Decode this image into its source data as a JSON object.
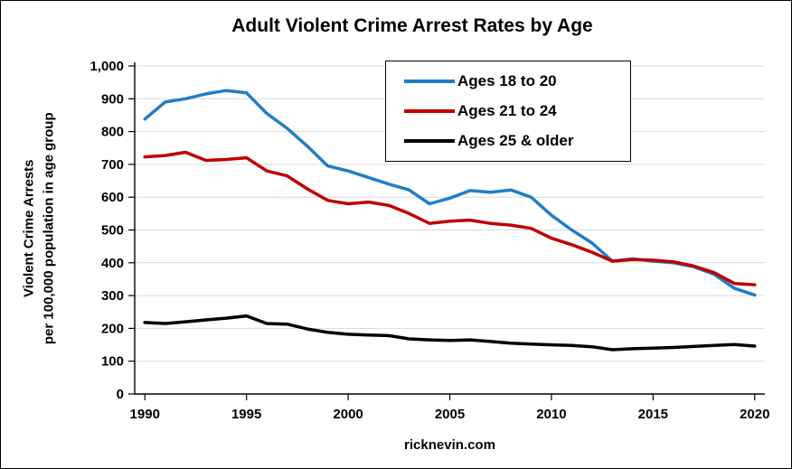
{
  "page": {
    "title": "Adult Violent Crime Arrest Rates by Age",
    "footer": "ricknevin.com",
    "y_axis_label_line1": "Violent Crime Arrests",
    "y_axis_label_line2": "per 100,000 population in age group"
  },
  "colors": {
    "grid": "#D9D9D9",
    "axis": "#000000",
    "text": "#000000",
    "background": "#FFFFFF"
  },
  "chart_data": {
    "type": "line",
    "title": "Adult Violent Crime Arrest Rates by Age",
    "xlabel": "",
    "ylabel": "Violent Crime Arrests per 100,000 population in age group",
    "grid": "horizontal",
    "legend_position": "top-center",
    "ylim": [
      0,
      1000
    ],
    "x": [
      1990,
      1991,
      1992,
      1993,
      1994,
      1995,
      1996,
      1997,
      1998,
      1999,
      2000,
      2001,
      2002,
      2003,
      2004,
      2005,
      2006,
      2007,
      2008,
      2009,
      2010,
      2011,
      2012,
      2013,
      2014,
      2015,
      2016,
      2017,
      2018,
      2019,
      2020
    ],
    "x_tick_years": [
      1990,
      1995,
      2000,
      2005,
      2010,
      2015,
      2020
    ],
    "x_tick_labels": [
      "1990",
      "1995",
      "2000",
      "2005",
      "2010",
      "2015",
      "2020"
    ],
    "y_ticks": [
      0,
      100,
      200,
      300,
      400,
      500,
      600,
      700,
      800,
      900,
      1000
    ],
    "y_tick_labels": [
      "0",
      "100",
      "200",
      "300",
      "400",
      "500",
      "600",
      "700",
      "800",
      "900",
      "1,000"
    ],
    "series": [
      {
        "name": "Ages 18 to 20",
        "color": "#1F7EC4",
        "values": [
          838,
          890,
          900,
          915,
          925,
          918,
          855,
          810,
          755,
          695,
          680,
          660,
          640,
          622,
          580,
          597,
          620,
          615,
          622,
          600,
          545,
          500,
          460,
          405,
          412,
          405,
          400,
          388,
          365,
          322,
          302
        ]
      },
      {
        "name": "Ages 21 to 24",
        "color": "#C00000",
        "values": [
          723,
          727,
          737,
          712,
          715,
          720,
          680,
          665,
          625,
          590,
          580,
          585,
          575,
          550,
          520,
          527,
          530,
          520,
          515,
          505,
          475,
          455,
          432,
          405,
          410,
          408,
          403,
          390,
          370,
          337,
          333
        ]
      },
      {
        "name": "Ages 25 & older",
        "color": "#000000",
        "values": [
          218,
          215,
          220,
          226,
          231,
          238,
          215,
          213,
          198,
          188,
          182,
          180,
          178,
          168,
          165,
          163,
          165,
          160,
          155,
          152,
          150,
          148,
          144,
          135,
          138,
          140,
          142,
          145,
          148,
          151,
          146
        ]
      }
    ]
  }
}
